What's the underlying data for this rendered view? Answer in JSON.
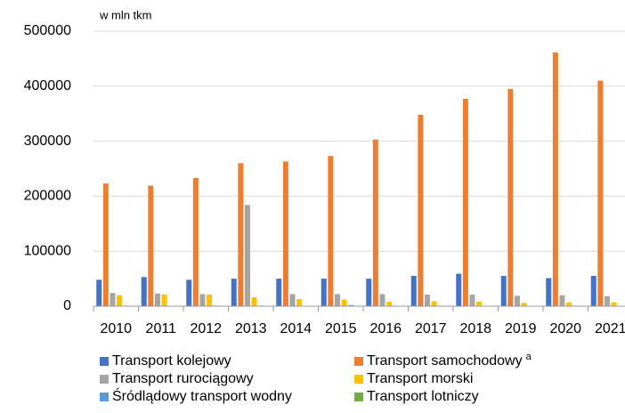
{
  "chart_data": {
    "type": "bar",
    "unit_label": "w mln tkm",
    "categories": [
      "2010",
      "2011",
      "2012",
      "2013",
      "2014",
      "2015",
      "2016",
      "2017",
      "2018",
      "2019",
      "2020",
      "2021"
    ],
    "series": [
      {
        "name": "Transport kolejowy",
        "color": "#4472c4",
        "values": [
          48000,
          53000,
          48000,
          50000,
          50000,
          50000,
          50000,
          55000,
          59000,
          55000,
          51000,
          55000
        ]
      },
      {
        "name": "Transport samochodowy",
        "name_note": "a",
        "color": "#ed7d31",
        "values": [
          223000,
          219000,
          233000,
          260000,
          263000,
          273000,
          303000,
          348000,
          377000,
          395000,
          461000,
          410000
        ]
      },
      {
        "name": "Transport rurociągowy",
        "color": "#a5a5a5",
        "values": [
          24000,
          23000,
          22000,
          184000,
          22000,
          22000,
          22000,
          21000,
          21000,
          19000,
          20000,
          18000
        ]
      },
      {
        "name": "Transport morski",
        "color": "#ffc000",
        "values": [
          20000,
          21000,
          21000,
          16000,
          13000,
          12000,
          8000,
          9000,
          8000,
          6000,
          7000,
          7000
        ]
      },
      {
        "name": "Śródlądowy transport wodny",
        "color": "#5b9bd5",
        "values": [
          1000,
          800,
          1000,
          1000,
          800,
          2000,
          700,
          900,
          700,
          700,
          600,
          700
        ]
      },
      {
        "name": "Transport lotniczy",
        "color": "#70ad47",
        "values": [
          100,
          100,
          100,
          100,
          100,
          100,
          100,
          100,
          100,
          100,
          100,
          100
        ]
      }
    ],
    "ylim": [
      0,
      500000
    ],
    "yticks": [
      0,
      100000,
      200000,
      300000,
      400000,
      500000
    ],
    "grid": true
  }
}
